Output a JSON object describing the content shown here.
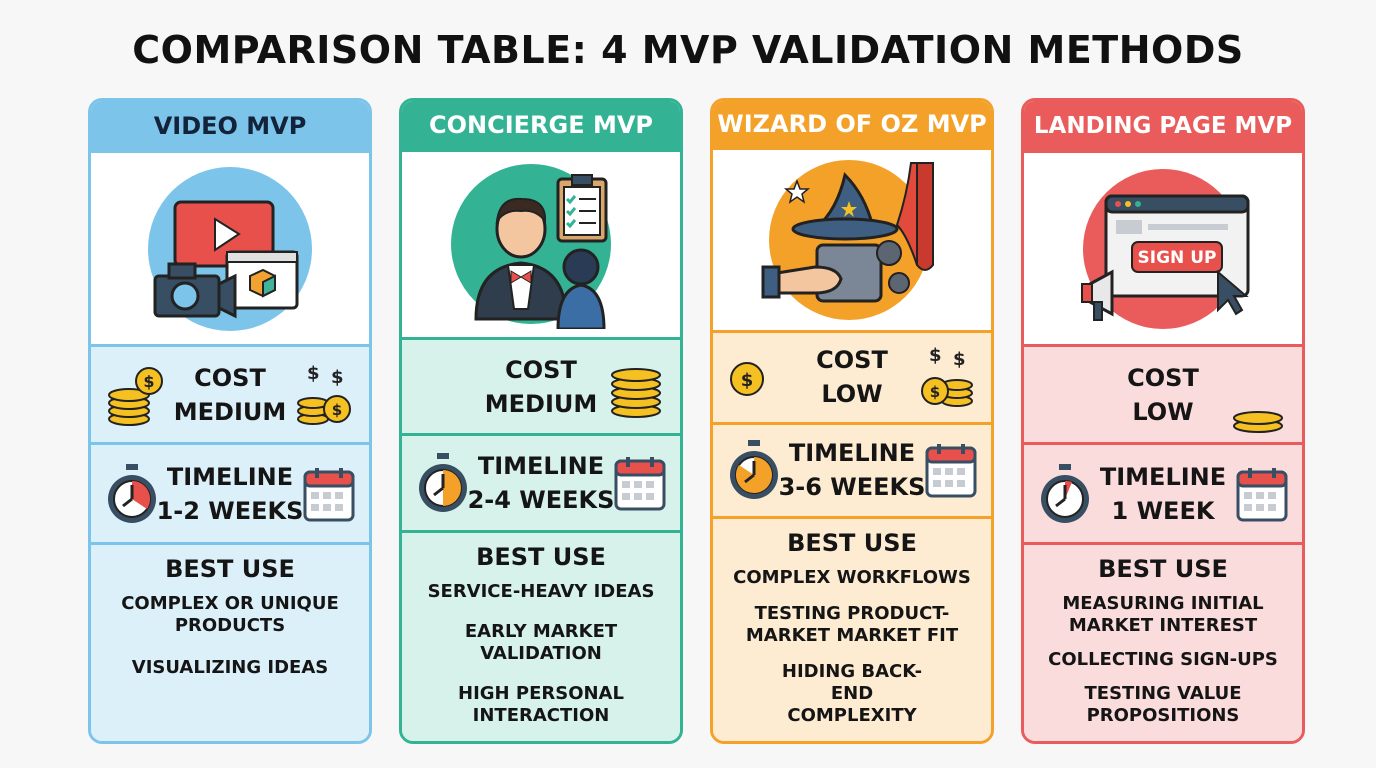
{
  "title": "COMPARISON TABLE: 4 MVP VALIDATION METHODS",
  "colors": {
    "video": "#7cc4ea",
    "video_light": "#dcf0fa",
    "concierge": "#33b394",
    "concierge_light": "#d6f2ea",
    "wizard": "#f4a12a",
    "wizard_light": "#fdebd2",
    "landing": "#ea5b5b",
    "landing_light": "#fbdcdc"
  },
  "cards": [
    {
      "name": "VIDEO MVP",
      "icon": "video-camera-icon",
      "cost_label": "COST",
      "cost_value": "MEDIUM",
      "timeline_label": "TIMELINE",
      "timeline_value": "1-2 WEEKS",
      "best_use_label": "BEST USE",
      "best_use": [
        "COMPLEX OR UNIQUE PRODUCTS",
        "VISUALIZING IDEAS"
      ]
    },
    {
      "name": "CONCIERGE MVP",
      "icon": "concierge-icon",
      "cost_label": "COST",
      "cost_value": "MEDIUM",
      "timeline_label": "TIMELINE",
      "timeline_value": "2-4 WEEKS",
      "best_use_label": "BEST USE",
      "best_use": [
        "SERVICE-HEAVY IDEAS",
        "EARLY MARKET VALIDATION",
        "HIGH PERSONAL INTERACTION"
      ]
    },
    {
      "name": "WIZARD OF OZ MVP",
      "icon": "wizard-hat-icon",
      "cost_label": "COST",
      "cost_value": "LOW",
      "timeline_label": "TIMELINE",
      "timeline_value": "3-6 WEEKS",
      "best_use_label": "BEST USE",
      "best_use": [
        "COMPLEX WORKFLOWS",
        "TESTING PRODUCT-MARKET MARKET FIT",
        "HIDING BACK-END COMPLEXITY"
      ]
    },
    {
      "name": "LANDING PAGE MVP",
      "icon": "landing-page-icon",
      "sign_up": "SIGN UP",
      "cost_label": "COST",
      "cost_value": "LOW",
      "timeline_label": "TIMELINE",
      "timeline_value": "1 WEEK",
      "best_use_label": "BEST USE",
      "best_use": [
        "MEASURING INITIAL MARKET INTEREST",
        "COLLECTING SIGN-UPS",
        "TESTING VALUE PROPOSITIONS"
      ]
    }
  ]
}
